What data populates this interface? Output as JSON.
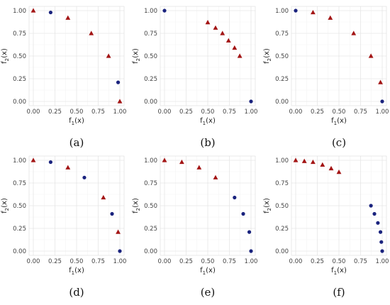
{
  "colors": {
    "circle": "#1a237e",
    "triangle": "#a31515"
  },
  "chart_data": [
    {
      "type": "scatter",
      "panel_label": "(a)",
      "xlabel": "f1(x)",
      "ylabel": "f2(x)",
      "xlim": [
        0,
        1
      ],
      "ylim": [
        0,
        1
      ],
      "xticks": [
        "0.00",
        "0.25",
        "0.50",
        "0.75",
        "1.00"
      ],
      "yticks": [
        "0.00",
        "0.25",
        "0.50",
        "0.75",
        "1.00"
      ],
      "grid": true,
      "series": [
        {
          "marker": "circle",
          "points": [
            [
              0.2,
              0.98
            ],
            [
              0.98,
              0.21
            ]
          ]
        },
        {
          "marker": "triangle",
          "points": [
            [
              0.0,
              1.0
            ],
            [
              0.4,
              0.92
            ],
            [
              0.67,
              0.75
            ],
            [
              0.87,
              0.5
            ],
            [
              1.0,
              0.0
            ]
          ]
        }
      ]
    },
    {
      "type": "scatter",
      "panel_label": "(b)",
      "xlabel": "f1(x)",
      "ylabel": "f2(x)",
      "xlim": [
        0,
        1
      ],
      "ylim": [
        0,
        1
      ],
      "xticks": [
        "0.00",
        "0.25",
        "0.50",
        "0.75",
        "1.00"
      ],
      "yticks": [
        "0.00",
        "0.25",
        "0.50",
        "0.75",
        "1.00"
      ],
      "grid": true,
      "series": [
        {
          "marker": "circle",
          "points": [
            [
              0.0,
              1.0
            ],
            [
              1.0,
              0.0
            ]
          ]
        },
        {
          "marker": "triangle",
          "points": [
            [
              0.5,
              0.87
            ],
            [
              0.59,
              0.81
            ],
            [
              0.67,
              0.75
            ],
            [
              0.74,
              0.67
            ],
            [
              0.81,
              0.59
            ],
            [
              0.87,
              0.5
            ]
          ]
        }
      ]
    },
    {
      "type": "scatter",
      "panel_label": "(c)",
      "xlabel": "f1(x)",
      "ylabel": "f2(x)",
      "xlim": [
        0,
        1
      ],
      "ylim": [
        0,
        1
      ],
      "xticks": [
        "0.00",
        "0.25",
        "0.50",
        "0.75",
        "1.00"
      ],
      "yticks": [
        "0.00",
        "0.25",
        "0.50",
        "0.75",
        "1.00"
      ],
      "grid": true,
      "series": [
        {
          "marker": "circle",
          "points": [
            [
              0.0,
              1.0
            ],
            [
              1.0,
              0.0
            ]
          ]
        },
        {
          "marker": "triangle",
          "points": [
            [
              0.2,
              0.98
            ],
            [
              0.4,
              0.92
            ],
            [
              0.67,
              0.75
            ],
            [
              0.87,
              0.5
            ],
            [
              0.98,
              0.21
            ]
          ]
        }
      ]
    },
    {
      "type": "scatter",
      "panel_label": "(d)",
      "xlabel": "f1(x)",
      "ylabel": "f2(x)",
      "xlim": [
        0,
        1
      ],
      "ylim": [
        0,
        1
      ],
      "xticks": [
        "0.00",
        "0.25",
        "0.50",
        "0.75",
        "1.00"
      ],
      "yticks": [
        "0.00",
        "0.25",
        "0.50",
        "0.75",
        "1.00"
      ],
      "grid": true,
      "series": [
        {
          "marker": "circle",
          "points": [
            [
              0.2,
              0.98
            ],
            [
              0.59,
              0.81
            ],
            [
              0.91,
              0.41
            ],
            [
              1.0,
              0.0
            ]
          ]
        },
        {
          "marker": "triangle",
          "points": [
            [
              0.0,
              1.0
            ],
            [
              0.4,
              0.92
            ],
            [
              0.81,
              0.59
            ],
            [
              0.98,
              0.21
            ]
          ]
        }
      ]
    },
    {
      "type": "scatter",
      "panel_label": "(e)",
      "xlabel": "f1(x)",
      "ylabel": "f2(x)",
      "xlim": [
        0,
        1
      ],
      "ylim": [
        0,
        1
      ],
      "xticks": [
        "0.00",
        "0.25",
        "0.50",
        "0.75",
        "1.00"
      ],
      "yticks": [
        "0.00",
        "0.25",
        "0.50",
        "0.75",
        "1.00"
      ],
      "grid": true,
      "series": [
        {
          "marker": "circle",
          "points": [
            [
              0.81,
              0.59
            ],
            [
              0.91,
              0.41
            ],
            [
              0.98,
              0.21
            ],
            [
              1.0,
              0.0
            ]
          ]
        },
        {
          "marker": "triangle",
          "points": [
            [
              0.0,
              1.0
            ],
            [
              0.2,
              0.98
            ],
            [
              0.4,
              0.92
            ],
            [
              0.59,
              0.81
            ]
          ]
        }
      ]
    },
    {
      "type": "scatter",
      "panel_label": "(f)",
      "xlabel": "f1(x)",
      "ylabel": "f2(x)",
      "xlim": [
        0,
        1
      ],
      "ylim": [
        0,
        1
      ],
      "xticks": [
        "0.00",
        "0.25",
        "0.50",
        "0.75",
        "1.00"
      ],
      "yticks": [
        "0.00",
        "0.25",
        "0.50",
        "0.75",
        "1.00"
      ],
      "grid": true,
      "series": [
        {
          "marker": "circle",
          "points": [
            [
              0.87,
              0.5
            ],
            [
              0.91,
              0.41
            ],
            [
              0.95,
              0.31
            ],
            [
              0.98,
              0.21
            ],
            [
              0.99,
              0.1
            ],
            [
              1.0,
              0.0
            ]
          ]
        },
        {
          "marker": "triangle",
          "points": [
            [
              0.0,
              1.0
            ],
            [
              0.1,
              0.99
            ],
            [
              0.2,
              0.98
            ],
            [
              0.31,
              0.95
            ],
            [
              0.41,
              0.91
            ],
            [
              0.5,
              0.87
            ]
          ]
        }
      ]
    }
  ]
}
